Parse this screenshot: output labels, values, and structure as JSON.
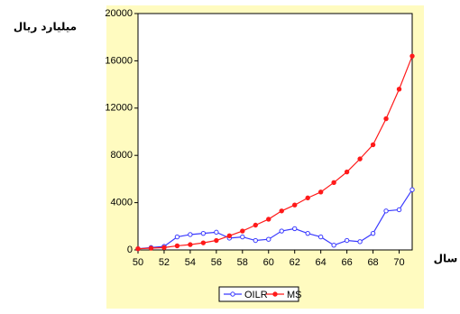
{
  "chart_data": {
    "type": "line",
    "y_label": "میلیارد ریال",
    "x_label": "سال",
    "x": [
      50,
      51,
      52,
      53,
      54,
      55,
      56,
      57,
      58,
      59,
      60,
      61,
      62,
      63,
      64,
      65,
      66,
      67,
      68,
      69,
      70,
      71
    ],
    "xlim": [
      50,
      71
    ],
    "xticks": [
      50,
      52,
      54,
      56,
      58,
      60,
      62,
      64,
      66,
      68,
      70
    ],
    "ylim": [
      0,
      20000
    ],
    "yticks": [
      0,
      4000,
      8000,
      12000,
      16000,
      20000
    ],
    "background": "#fffbc0",
    "legend": "bottom",
    "series": [
      {
        "name": "OILR",
        "color": "#3a3aff",
        "marker": "open",
        "values": [
          100,
          200,
          300,
          1100,
          1300,
          1400,
          1500,
          1000,
          1100,
          800,
          900,
          1600,
          1800,
          1400,
          1100,
          400,
          800,
          700,
          1400,
          3300,
          3400,
          5100
        ]
      },
      {
        "name": "MS",
        "color": "#ff1a1a",
        "marker": "filled",
        "values": [
          100,
          150,
          200,
          350,
          450,
          600,
          800,
          1200,
          1600,
          2100,
          2600,
          3300,
          3800,
          4400,
          4900,
          5700,
          6600,
          7700,
          8900,
          11100,
          13600,
          16400
        ]
      }
    ]
  }
}
